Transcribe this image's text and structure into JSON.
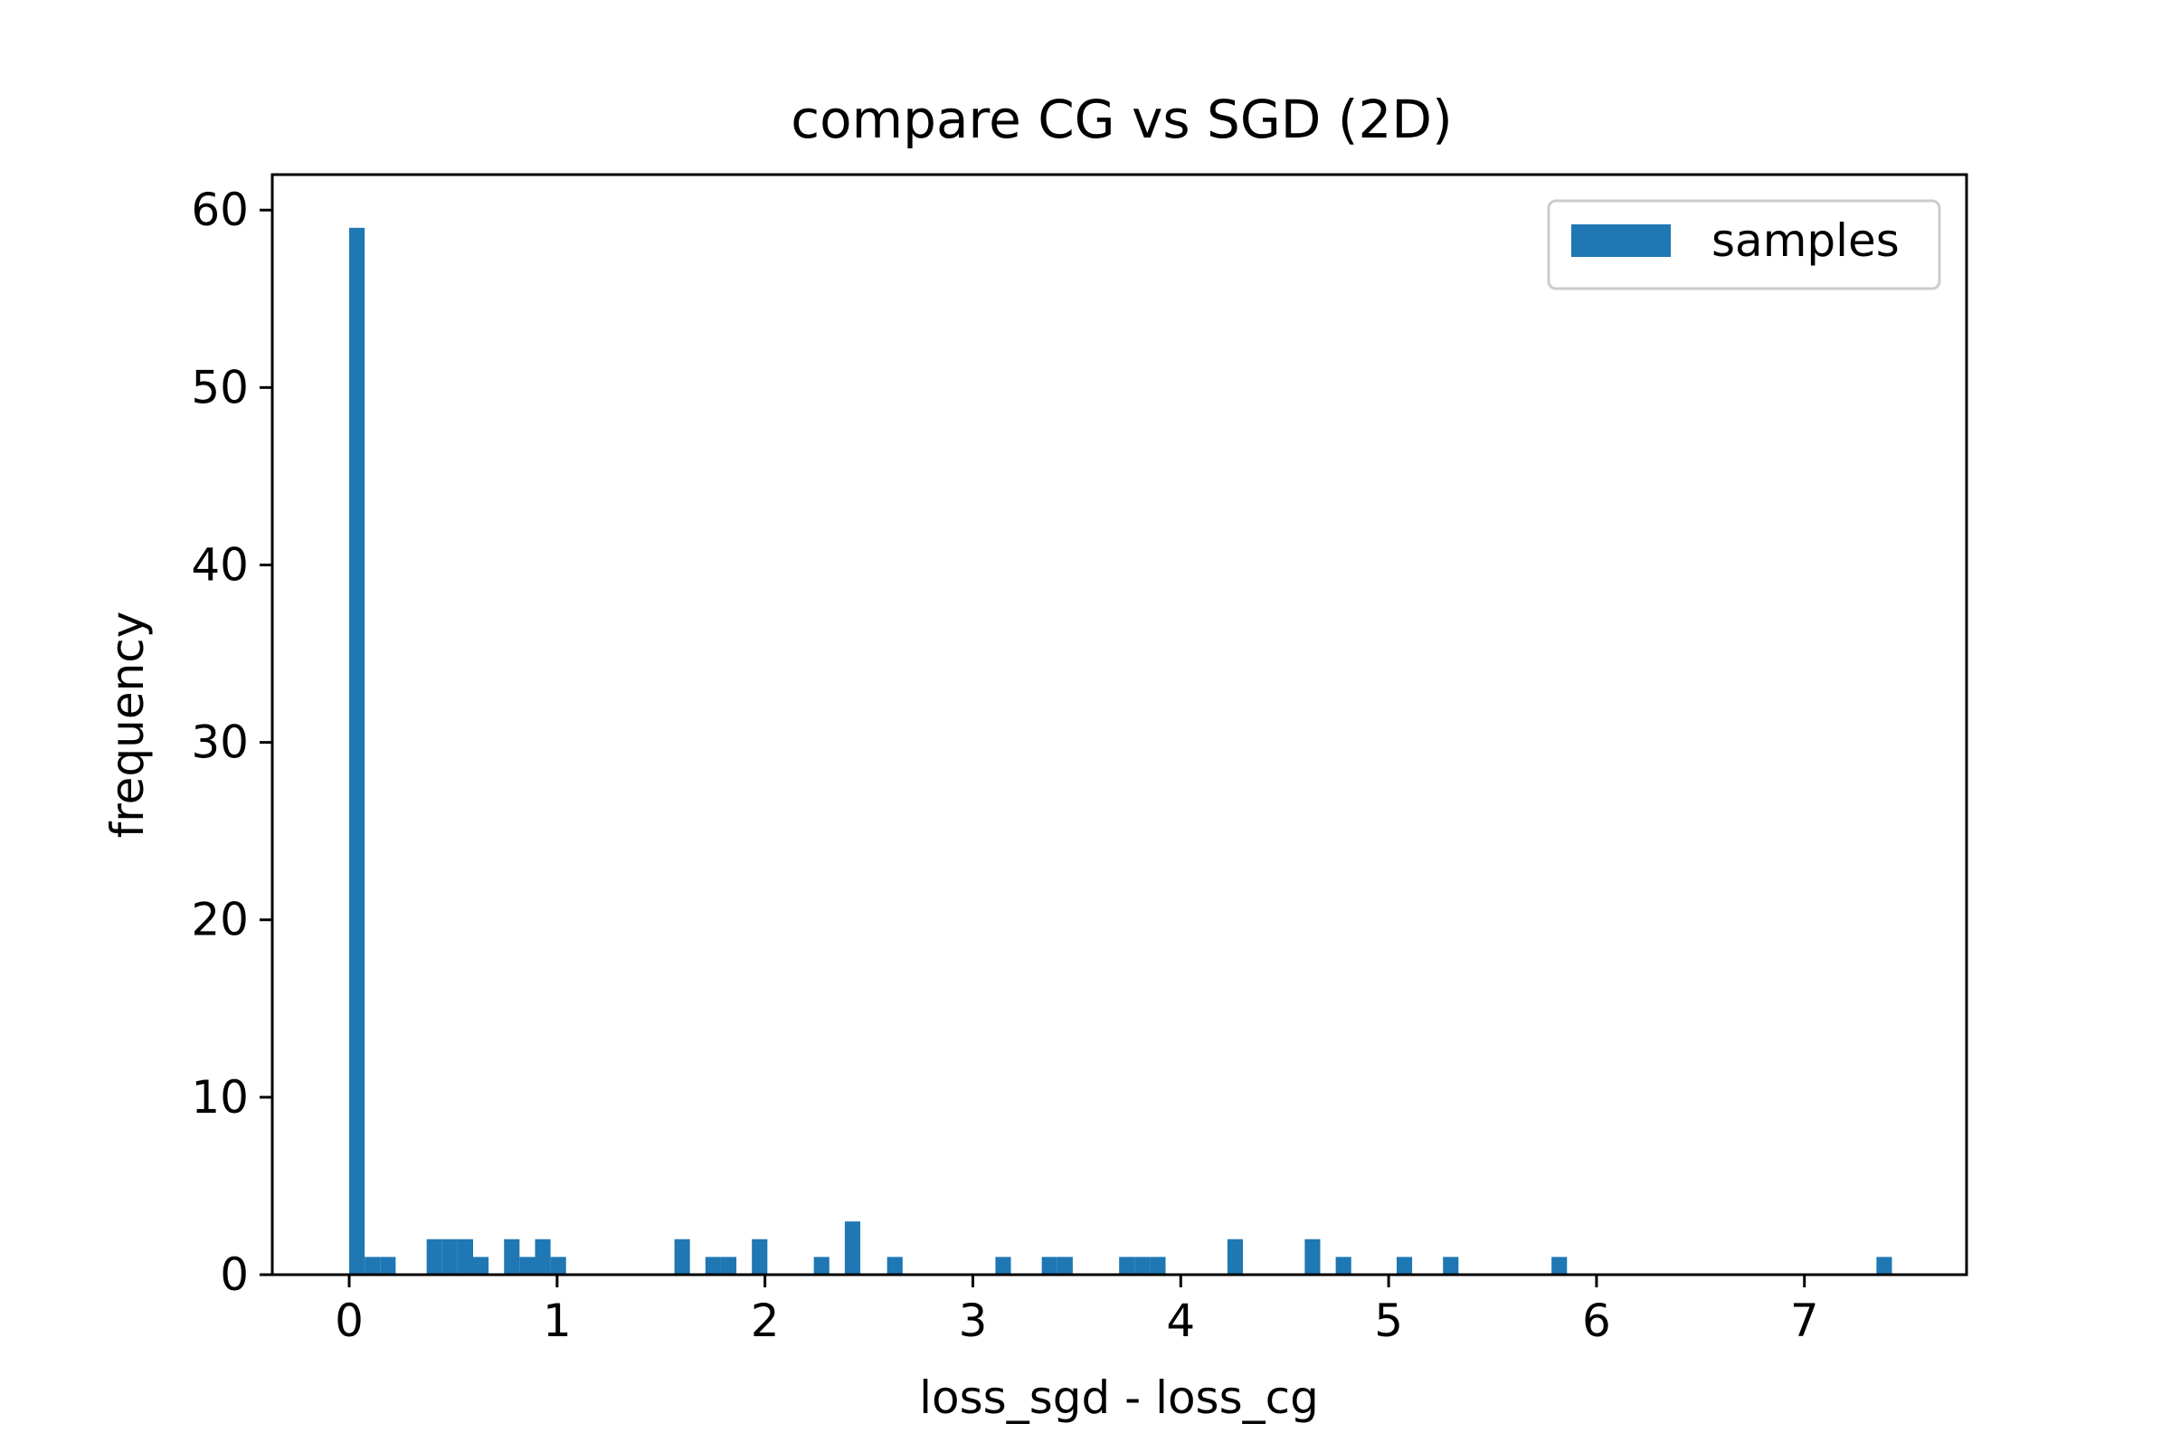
{
  "chart_data": {
    "type": "bar",
    "title": "compare CG vs SGD (2D)",
    "xlabel": "loss_sgd - loss_cg",
    "ylabel": "frequency",
    "xlim": [
      -0.37,
      7.78
    ],
    "ylim": [
      0,
      62
    ],
    "xticks": [
      0,
      1,
      2,
      3,
      4,
      5,
      6,
      7
    ],
    "yticks": [
      0,
      10,
      20,
      30,
      40,
      50,
      60
    ],
    "grid": false,
    "legend": {
      "placement": "top-right",
      "entries": [
        "samples"
      ]
    },
    "series": [
      {
        "name": "samples",
        "color": "#1f77b4",
        "bin_width": 0.0745,
        "bins": [
          {
            "x0": 0.0,
            "value": 59
          },
          {
            "x0": 0.0745,
            "value": 1
          },
          {
            "x0": 0.149,
            "value": 1
          },
          {
            "x0": 0.3725,
            "value": 2
          },
          {
            "x0": 0.447,
            "value": 2
          },
          {
            "x0": 0.5215,
            "value": 2
          },
          {
            "x0": 0.596,
            "value": 1
          },
          {
            "x0": 0.745,
            "value": 2
          },
          {
            "x0": 0.8195,
            "value": 1
          },
          {
            "x0": 0.894,
            "value": 2
          },
          {
            "x0": 0.9685,
            "value": 1
          },
          {
            "x0": 1.5645,
            "value": 2
          },
          {
            "x0": 1.7135,
            "value": 1
          },
          {
            "x0": 1.788,
            "value": 1
          },
          {
            "x0": 1.937,
            "value": 2
          },
          {
            "x0": 2.235,
            "value": 1
          },
          {
            "x0": 2.384,
            "value": 3
          },
          {
            "x0": 2.5875,
            "value": 1
          },
          {
            "x0": 3.1085,
            "value": 1
          },
          {
            "x0": 3.3315,
            "value": 1
          },
          {
            "x0": 3.406,
            "value": 1
          },
          {
            "x0": 3.7035,
            "value": 1
          },
          {
            "x0": 3.778,
            "value": 1
          },
          {
            "x0": 3.8525,
            "value": 1
          },
          {
            "x0": 4.2245,
            "value": 2
          },
          {
            "x0": 4.5965,
            "value": 2
          },
          {
            "x0": 4.7455,
            "value": 1
          },
          {
            "x0": 5.0385,
            "value": 1
          },
          {
            "x0": 5.2615,
            "value": 1
          },
          {
            "x0": 5.7835,
            "value": 1
          },
          {
            "x0": 7.3465,
            "value": 1
          }
        ]
      }
    ]
  }
}
